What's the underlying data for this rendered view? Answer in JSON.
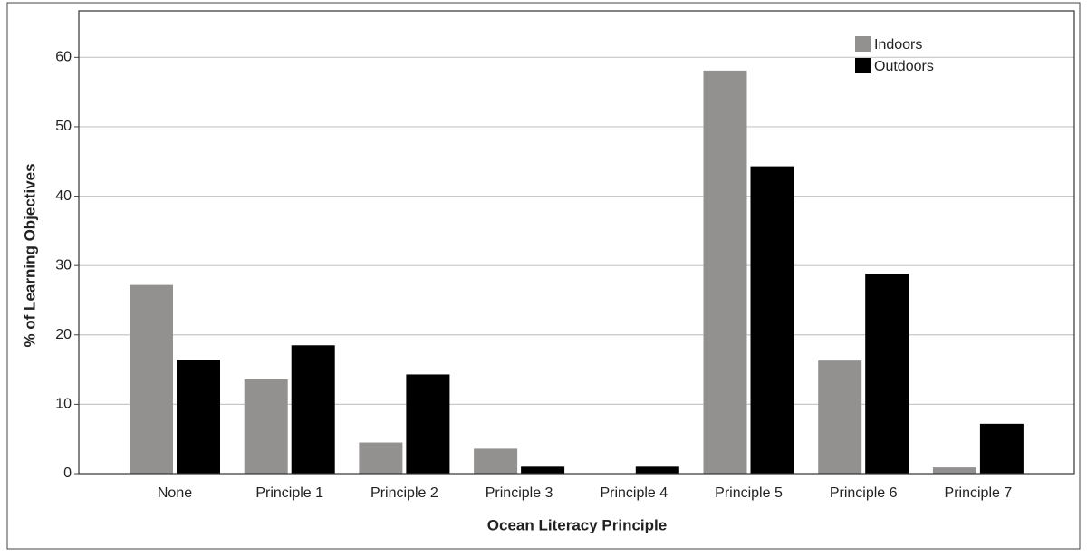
{
  "chart_data": {
    "type": "bar",
    "x_label": "Ocean Literacy Principle",
    "y_label": "% of Learning Objectives",
    "categories": [
      "None",
      "Principle 1",
      "Principle 2",
      "Principle 3",
      "Principle 4",
      "Principle 5",
      "Principle 6",
      "Principle 7"
    ],
    "series": [
      {
        "name": "Indoors",
        "color": "#939090",
        "values": [
          27.2,
          13.6,
          4.5,
          3.6,
          0,
          58.1,
          16.3,
          0.9
        ]
      },
      {
        "name": "Outdoors",
        "color": "#000000",
        "values": [
          16.4,
          18.5,
          14.3,
          1.0,
          1.0,
          44.3,
          28.8,
          7.2
        ]
      }
    ],
    "ylim": [
      0,
      66.7
    ],
    "yticks": [
      0,
      10,
      20,
      30,
      40,
      50,
      60
    ],
    "grid": true,
    "legend": "top-right"
  }
}
